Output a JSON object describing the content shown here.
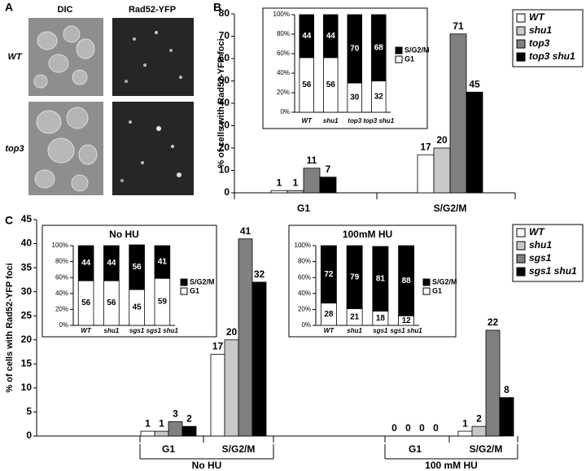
{
  "panel_a": {
    "label": "A",
    "columns": [
      "DIC",
      "Rad52-YFP"
    ],
    "rows": [
      "WT",
      "top3"
    ]
  },
  "chart_data": [
    {
      "type": "bar",
      "panel": "B",
      "ylabel": "% of cells with Rad52-YFP foci",
      "categories": [
        "G1",
        "S/G2/M"
      ],
      "series": [
        {
          "name": "WT",
          "color": "#ffffff",
          "values": [
            1,
            17
          ]
        },
        {
          "name": "shu1",
          "color": "#c8c8c8",
          "values": [
            1,
            20
          ]
        },
        {
          "name": "top3",
          "color": "#808080",
          "values": [
            11,
            71
          ]
        },
        {
          "name": "top3 shu1",
          "color": "#000000",
          "values": [
            7,
            45
          ]
        }
      ],
      "ylim": [
        0,
        80
      ],
      "yticks": [
        0,
        10,
        20,
        30,
        40,
        50,
        60,
        70,
        80
      ],
      "legend": "right"
    },
    {
      "type": "stacked_bar",
      "categories": [
        "WT",
        "shu1",
        "top3",
        "top3 shu1"
      ],
      "series": [
        {
          "name": "G1",
          "color": "#ffffff",
          "values": [
            56,
            56,
            30,
            32
          ]
        },
        {
          "name": "S/G2/M",
          "color": "#000000",
          "values": [
            44,
            44,
            70,
            68
          ]
        }
      ],
      "ylim": [
        0,
        100
      ],
      "yticks": [
        {
          "value": 0,
          "label": "0%"
        },
        {
          "value": 20,
          "label": "20%"
        },
        {
          "value": 40,
          "label": "40%"
        },
        {
          "value": 60,
          "label": "60%"
        },
        {
          "value": 80,
          "label": "80%"
        },
        {
          "value": 100,
          "label": "100%"
        }
      ],
      "legend": "right"
    },
    {
      "type": "bar",
      "panel": "C",
      "ylabel": "% of cells with Rad52-YFP foci",
      "categories": [
        "G1",
        "S/G2/M",
        "G1",
        "S/G2/M"
      ],
      "group_labels": [
        "No HU",
        "100 mM HU"
      ],
      "series": [
        {
          "name": "WT",
          "color": "#ffffff",
          "values": [
            1,
            17,
            0,
            1
          ]
        },
        {
          "name": "shu1",
          "color": "#c8c8c8",
          "values": [
            1,
            20,
            0,
            2
          ]
        },
        {
          "name": "sgs1",
          "color": "#808080",
          "values": [
            3,
            41,
            0,
            22
          ]
        },
        {
          "name": "sgs1 shu1",
          "color": "#000000",
          "values": [
            2,
            32,
            0,
            8
          ]
        }
      ],
      "ylim": [
        0,
        45
      ],
      "yticks": [
        0,
        5,
        10,
        15,
        20,
        25,
        30,
        35,
        40,
        45
      ],
      "legend": "right"
    },
    {
      "type": "stacked_bar",
      "title": "No HU",
      "categories": [
        "WT",
        "shu1",
        "sgs1",
        "sgs1 shu1"
      ],
      "series": [
        {
          "name": "G1",
          "color": "#ffffff",
          "values": [
            56,
            56,
            45,
            59
          ]
        },
        {
          "name": "S/G2/M",
          "color": "#000000",
          "values": [
            44,
            44,
            56,
            41
          ]
        }
      ],
      "ylim": [
        0,
        100
      ],
      "yticks": [
        {
          "value": 0,
          "label": "0%"
        },
        {
          "value": 20,
          "label": "20%"
        },
        {
          "value": 40,
          "label": "40%"
        },
        {
          "value": 60,
          "label": "60%"
        },
        {
          "value": 80,
          "label": "80%"
        },
        {
          "value": 100,
          "label": "100%"
        }
      ],
      "legend": "right"
    },
    {
      "type": "stacked_bar",
      "title": "100mM HU",
      "categories": [
        "WT",
        "shu1",
        "sgs1",
        "sgs1 shu1"
      ],
      "series": [
        {
          "name": "G1",
          "color": "#ffffff",
          "values": [
            28,
            21,
            18,
            12
          ]
        },
        {
          "name": "S/G2/M",
          "color": "#000000",
          "values": [
            72,
            79,
            81,
            88
          ]
        }
      ],
      "ylim": [
        0,
        100
      ],
      "yticks": [
        {
          "value": 0,
          "label": "0%"
        },
        {
          "value": 20,
          "label": "20%"
        },
        {
          "value": 40,
          "label": "40%"
        },
        {
          "value": 60,
          "label": "60%"
        },
        {
          "value": 80,
          "label": "80%"
        },
        {
          "value": 100,
          "label": "100%"
        }
      ],
      "legend": "right"
    }
  ]
}
